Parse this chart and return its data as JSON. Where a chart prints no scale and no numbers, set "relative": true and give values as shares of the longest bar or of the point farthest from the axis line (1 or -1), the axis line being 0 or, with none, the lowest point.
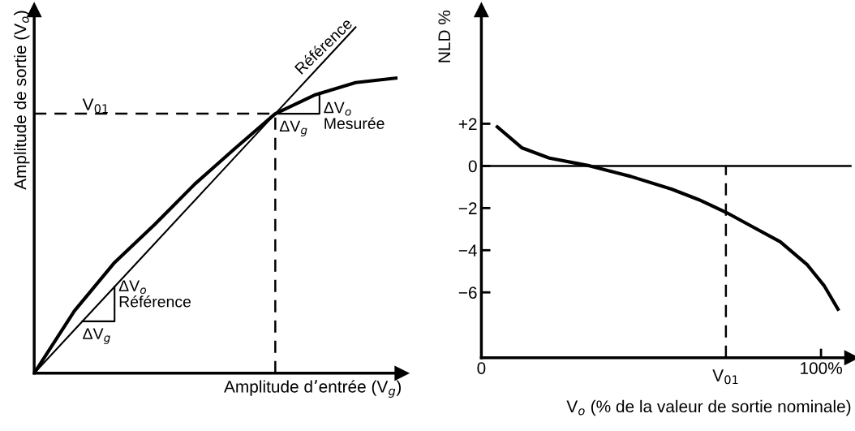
{
  "chart_data": [
    {
      "type": "line",
      "relative": true,
      "tick_labels": false,
      "xlabel": "Amplitude d’entrée (V$_{g}$)",
      "ylabel": "Amplitude de sortie (V$_{o}$)",
      "categories": [
        null,
        null,
        null,
        null,
        null,
        null,
        null,
        null,
        null,
        null
      ],
      "series": [
        {
          "color": "#000000",
          "values": [
            0,
            0.18,
            0.32,
            0.43,
            0.547,
            0.65,
            0.75,
            0.805,
            0.84,
            0.853
          ]
        },
        {
          "name": "Référence",
          "color": "#000000",
          "values": [
            0,
            0.125,
            0.25,
            0.375,
            0.5,
            0.625,
            0.75,
            0.875,
            1.0,
            null
          ]
        }
      ],
      "ref_lines": [
        {
          "axis": "y",
          "value": 0.75,
          "label": "V$_{01}$",
          "line_style": "dashed"
        }
      ],
      "annotations": [
        "ΔV$_{o}$\nMesurée",
        "ΔV$_{g}$",
        "ΔV$_{o}$\nRéférence",
        "ΔV$_{g}$"
      ]
    },
    {
      "type": "line",
      "xlabel": "V$_{o}$ (% de la valeur de sortie nominale)",
      "ylabel": "NLD %",
      "xlim": [
        0,
        109
      ],
      "ylim": [
        -9.1,
        7.4
      ],
      "xticks": [
        0,
        {
          "value": 100,
          "label": "100%"
        }
      ],
      "yticks": [
        {
          "value": 2,
          "label": "+2"
        },
        0,
        {
          "value": -2,
          "label": "−2"
        },
        {
          "value": -4,
          "label": "−4"
        },
        {
          "value": -6,
          "label": "−6"
        }
      ],
      "series": [
        {
          "color": "#000000",
          "x": [
            4.7,
            12,
            20,
            32,
            44,
            56,
            64,
            72,
            80,
            88,
            96,
            101,
            105
          ],
          "values": [
            1.85,
            0.85,
            0.37,
            0,
            -0.5,
            -1.1,
            -1.6,
            -2.2,
            -2.9,
            -3.6,
            -4.7,
            -5.7,
            -6.8
          ]
        }
      ],
      "ref_lines": [
        {
          "axis": "y",
          "value": 0,
          "line_style": "solid"
        },
        {
          "axis": "x",
          "value": 72,
          "label": "V$_{01}$",
          "line_style": "dashed"
        }
      ]
    }
  ]
}
